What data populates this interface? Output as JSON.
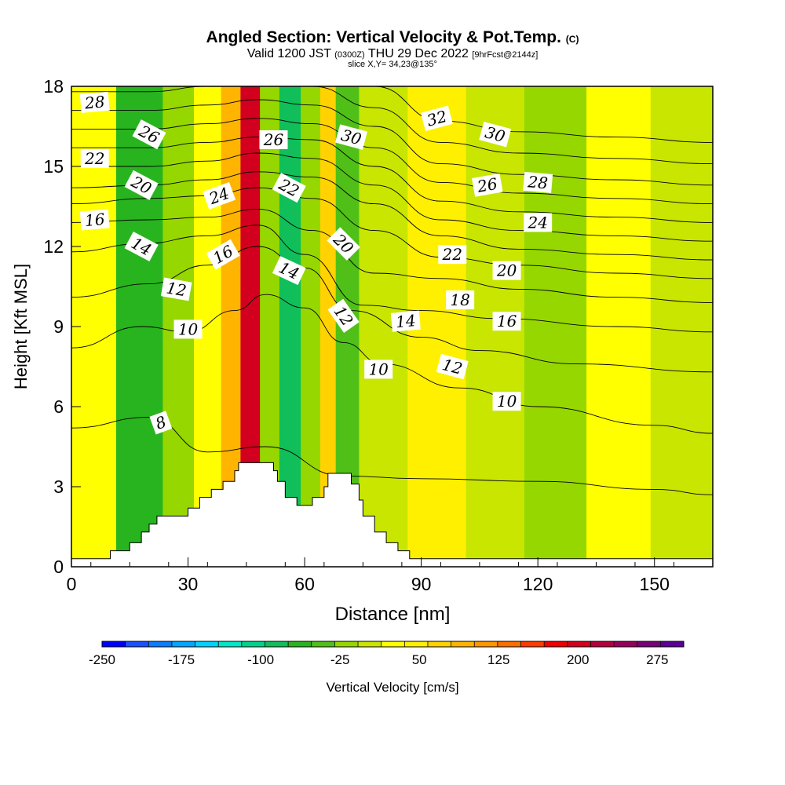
{
  "chart_data": {
    "type": "heatmap",
    "title": "Angled Section: Vertical Velocity & Pot.Temp.",
    "title_mark": "(C)",
    "subtitle_main": "Valid 1200 JST",
    "subtitle_utc": "(0300Z)",
    "subtitle_date": "THU 29 Dec 2022",
    "subtitle_fcst": "[9hrFcst@2144z]",
    "slice_label": "slice X,Y= 34,23@135°",
    "xlabel": "Distance [nm]",
    "ylabel": "Height [Kft MSL]",
    "xlim": [
      0,
      165
    ],
    "ylim": [
      0,
      18
    ],
    "xticks": [
      0,
      30,
      60,
      90,
      120,
      150
    ],
    "yticks": [
      0,
      3,
      6,
      9,
      12,
      15,
      18
    ],
    "colorbar": {
      "label": "Vertical Velocity [cm/s]",
      "tick_labels": [
        "-250",
        "-175",
        "-100",
        "-25",
        "50",
        "125",
        "200",
        "275"
      ],
      "tick_values": [
        -250,
        -175,
        -100,
        -25,
        50,
        125,
        200,
        275
      ],
      "range": [
        -250,
        300
      ],
      "colors": [
        "#0000ff",
        "#1a50ff",
        "#0a7dff",
        "#00a7ff",
        "#00d2ff",
        "#00e6c8",
        "#00d28c",
        "#10be5a",
        "#28b41e",
        "#50c018",
        "#96d700",
        "#c8e600",
        "#ffff00",
        "#fff000",
        "#ffd200",
        "#ffb400",
        "#ff9600",
        "#ff6e00",
        "#ff3c00",
        "#f00000",
        "#d2001e",
        "#b4003c",
        "#96005a",
        "#780078",
        "#5a0096"
      ]
    },
    "velocity_bands": [
      {
        "x_center": 3,
        "value": 35
      },
      {
        "x_center": 20,
        "value": -70
      },
      {
        "x_center": 27,
        "value": -20
      },
      {
        "x_center": 36,
        "value": 35
      },
      {
        "x_center": 41,
        "value": 90
      },
      {
        "x_center": 46,
        "value": 190
      },
      {
        "x_center": 51,
        "value": -20
      },
      {
        "x_center": 56,
        "value": -75
      },
      {
        "x_center": 62,
        "value": -15
      },
      {
        "x_center": 66,
        "value": 60
      },
      {
        "x_center": 70,
        "value": -45
      },
      {
        "x_center": 78,
        "value": 0
      },
      {
        "x_center": 95,
        "value": 45
      },
      {
        "x_center": 108,
        "value": 10
      },
      {
        "x_center": 125,
        "value": -10
      },
      {
        "x_center": 140,
        "value": 15
      },
      {
        "x_center": 158,
        "value": -5
      }
    ],
    "terrain": [
      [
        0,
        0.3
      ],
      [
        10,
        0.3
      ],
      [
        10,
        0.6
      ],
      [
        15,
        0.6
      ],
      [
        15,
        0.9
      ],
      [
        18,
        0.9
      ],
      [
        18,
        1.3
      ],
      [
        20,
        1.3
      ],
      [
        20,
        1.6
      ],
      [
        22,
        1.6
      ],
      [
        22,
        1.9
      ],
      [
        30,
        1.9
      ],
      [
        30,
        2.2
      ],
      [
        33,
        2.2
      ],
      [
        33,
        2.6
      ],
      [
        36,
        2.6
      ],
      [
        36,
        2.9
      ],
      [
        39,
        2.9
      ],
      [
        39,
        3.2
      ],
      [
        42,
        3.2
      ],
      [
        42,
        3.6
      ],
      [
        43,
        3.6
      ],
      [
        43,
        3.9
      ],
      [
        52,
        3.9
      ],
      [
        52,
        3.6
      ],
      [
        53,
        3.6
      ],
      [
        53,
        3.2
      ],
      [
        55,
        3.2
      ],
      [
        55,
        2.6
      ],
      [
        58,
        2.6
      ],
      [
        58,
        2.3
      ],
      [
        62,
        2.3
      ],
      [
        62,
        2.6
      ],
      [
        65,
        2.6
      ],
      [
        65,
        3.0
      ],
      [
        66,
        3.0
      ],
      [
        66,
        3.5
      ],
      [
        72,
        3.5
      ],
      [
        72,
        3.1
      ],
      [
        74,
        3.1
      ],
      [
        74,
        2.5
      ],
      [
        75,
        2.5
      ],
      [
        75,
        1.9
      ],
      [
        78,
        1.9
      ],
      [
        78,
        1.3
      ],
      [
        81,
        1.3
      ],
      [
        81,
        0.9
      ],
      [
        84,
        0.9
      ],
      [
        84,
        0.6
      ],
      [
        87,
        0.6
      ],
      [
        87,
        0.3
      ],
      [
        165,
        0.3
      ]
    ],
    "isentropes": [
      {
        "temp": 8,
        "pts": [
          [
            0,
            5.2
          ],
          [
            20,
            5.6
          ],
          [
            35,
            4.3
          ],
          [
            50,
            4.5
          ],
          [
            70,
            3.4
          ],
          [
            90,
            3.3
          ],
          [
            120,
            3.2
          ],
          [
            150,
            2.9
          ],
          [
            165,
            2.7
          ]
        ]
      },
      {
        "temp": 10,
        "pts": [
          [
            0,
            8.2
          ],
          [
            18,
            9.0
          ],
          [
            30,
            8.8
          ],
          [
            42,
            9.6
          ],
          [
            50,
            10.2
          ],
          [
            60,
            9.7
          ],
          [
            70,
            8.4
          ],
          [
            80,
            7.6
          ],
          [
            100,
            6.7
          ],
          [
            120,
            6.0
          ],
          [
            150,
            5.3
          ],
          [
            165,
            5.0
          ]
        ]
      },
      {
        "temp": 12,
        "pts": [
          [
            0,
            10.1
          ],
          [
            20,
            10.6
          ],
          [
            35,
            11.3
          ],
          [
            48,
            12.0
          ],
          [
            60,
            11.2
          ],
          [
            72,
            9.6
          ],
          [
            90,
            8.6
          ],
          [
            105,
            8.1
          ],
          [
            130,
            7.6
          ],
          [
            165,
            7.3
          ]
        ]
      },
      {
        "temp": 14,
        "pts": [
          [
            0,
            11.8
          ],
          [
            18,
            12.1
          ],
          [
            35,
            12.4
          ],
          [
            48,
            12.8
          ],
          [
            60,
            11.7
          ],
          [
            75,
            9.8
          ],
          [
            90,
            9.6
          ],
          [
            110,
            9.3
          ],
          [
            140,
            9.0
          ],
          [
            165,
            8.8
          ]
        ]
      },
      {
        "temp": 16,
        "pts": [
          [
            0,
            12.9
          ],
          [
            20,
            13.0
          ],
          [
            35,
            13.1
          ],
          [
            48,
            13.4
          ],
          [
            62,
            12.6
          ],
          [
            78,
            11.0
          ],
          [
            95,
            10.8
          ],
          [
            115,
            10.4
          ],
          [
            140,
            10.1
          ],
          [
            165,
            9.9
          ]
        ]
      },
      {
        "temp": 18,
        "pts": [
          [
            0,
            13.6
          ],
          [
            20,
            13.8
          ],
          [
            35,
            13.9
          ],
          [
            48,
            14.2
          ],
          [
            62,
            13.8
          ],
          [
            78,
            12.6
          ],
          [
            95,
            11.6
          ],
          [
            115,
            11.3
          ],
          [
            140,
            11.0
          ],
          [
            165,
            10.8
          ]
        ]
      },
      {
        "temp": 20,
        "pts": [
          [
            0,
            14.2
          ],
          [
            20,
            14.3
          ],
          [
            35,
            14.5
          ],
          [
            48,
            14.8
          ],
          [
            62,
            14.6
          ],
          [
            78,
            13.6
          ],
          [
            95,
            12.4
          ],
          [
            115,
            11.9
          ],
          [
            140,
            11.7
          ],
          [
            165,
            11.5
          ]
        ]
      },
      {
        "temp": 22,
        "pts": [
          [
            0,
            15.0
          ],
          [
            20,
            15.0
          ],
          [
            35,
            15.2
          ],
          [
            48,
            15.5
          ],
          [
            62,
            15.3
          ],
          [
            78,
            14.3
          ],
          [
            95,
            13.0
          ],
          [
            115,
            12.6
          ],
          [
            140,
            12.4
          ],
          [
            165,
            12.2
          ]
        ]
      },
      {
        "temp": 24,
        "pts": [
          [
            0,
            15.7
          ],
          [
            20,
            15.7
          ],
          [
            35,
            15.9
          ],
          [
            48,
            16.1
          ],
          [
            62,
            16.0
          ],
          [
            78,
            15.0
          ],
          [
            95,
            13.7
          ],
          [
            115,
            13.3
          ],
          [
            140,
            13.1
          ],
          [
            165,
            12.9
          ]
        ]
      },
      {
        "temp": 26,
        "pts": [
          [
            0,
            16.4
          ],
          [
            20,
            16.4
          ],
          [
            35,
            16.6
          ],
          [
            48,
            16.8
          ],
          [
            62,
            16.6
          ],
          [
            78,
            15.7
          ],
          [
            95,
            14.4
          ],
          [
            115,
            14.0
          ],
          [
            140,
            13.8
          ],
          [
            165,
            13.6
          ]
        ]
      },
      {
        "temp": 28,
        "pts": [
          [
            0,
            17.1
          ],
          [
            20,
            17.1
          ],
          [
            35,
            17.3
          ],
          [
            48,
            17.5
          ],
          [
            62,
            17.3
          ],
          [
            78,
            16.5
          ],
          [
            95,
            15.1
          ],
          [
            115,
            14.7
          ],
          [
            140,
            14.5
          ],
          [
            165,
            14.3
          ]
        ]
      },
      {
        "temp": 30,
        "pts": [
          [
            0,
            17.8
          ],
          [
            20,
            17.8
          ],
          [
            35,
            18.0
          ],
          [
            48,
            18.0
          ],
          [
            62,
            18.0
          ],
          [
            78,
            17.2
          ],
          [
            95,
            15.9
          ],
          [
            115,
            15.5
          ],
          [
            140,
            15.3
          ],
          [
            165,
            15.1
          ]
        ]
      },
      {
        "temp": 32,
        "pts": [
          [
            78,
            18.0
          ],
          [
            95,
            16.7
          ],
          [
            115,
            16.3
          ],
          [
            140,
            16.1
          ],
          [
            165,
            15.9
          ]
        ]
      }
    ],
    "contour_labels": [
      {
        "text": "28",
        "x": 6,
        "y": 17.4,
        "angle": -5
      },
      {
        "text": "26",
        "x": 20,
        "y": 16.2,
        "angle": 28
      },
      {
        "text": "26",
        "x": 52,
        "y": 16.0,
        "angle": 0
      },
      {
        "text": "30",
        "x": 72,
        "y": 16.1,
        "angle": 15
      },
      {
        "text": "32",
        "x": 94,
        "y": 16.8,
        "angle": -15
      },
      {
        "text": "30",
        "x": 109,
        "y": 16.2,
        "angle": 15
      },
      {
        "text": "22",
        "x": 6,
        "y": 15.3,
        "angle": 0
      },
      {
        "text": "20",
        "x": 18,
        "y": 14.3,
        "angle": 28
      },
      {
        "text": "24",
        "x": 38,
        "y": 13.9,
        "angle": -20
      },
      {
        "text": "22",
        "x": 56,
        "y": 14.2,
        "angle": 28
      },
      {
        "text": "26",
        "x": 107,
        "y": 14.3,
        "angle": -10
      },
      {
        "text": "28",
        "x": 120,
        "y": 14.4,
        "angle": 5
      },
      {
        "text": "16",
        "x": 6,
        "y": 13.0,
        "angle": -5
      },
      {
        "text": "24",
        "x": 120,
        "y": 12.9,
        "angle": 0
      },
      {
        "text": "14",
        "x": 18,
        "y": 12.0,
        "angle": 28
      },
      {
        "text": "20",
        "x": 70,
        "y": 12.1,
        "angle": 45
      },
      {
        "text": "16",
        "x": 39,
        "y": 11.7,
        "angle": -30
      },
      {
        "text": "22",
        "x": 98,
        "y": 11.7,
        "angle": 0
      },
      {
        "text": "14",
        "x": 56,
        "y": 11.1,
        "angle": 25
      },
      {
        "text": "20",
        "x": 112,
        "y": 11.1,
        "angle": 0
      },
      {
        "text": "12",
        "x": 27,
        "y": 10.4,
        "angle": 10
      },
      {
        "text": "18",
        "x": 100,
        "y": 10.0,
        "angle": 0
      },
      {
        "text": "12",
        "x": 70,
        "y": 9.4,
        "angle": 55
      },
      {
        "text": "14",
        "x": 86,
        "y": 9.2,
        "angle": -5
      },
      {
        "text": "16",
        "x": 112,
        "y": 9.2,
        "angle": 0
      },
      {
        "text": "10",
        "x": 30,
        "y": 8.9,
        "angle": 0
      },
      {
        "text": "10",
        "x": 79,
        "y": 7.4,
        "angle": 0
      },
      {
        "text": "12",
        "x": 98,
        "y": 7.5,
        "angle": 15
      },
      {
        "text": "10",
        "x": 112,
        "y": 6.2,
        "angle": 0
      },
      {
        "text": "8",
        "x": 23,
        "y": 5.4,
        "angle": -20
      }
    ]
  }
}
